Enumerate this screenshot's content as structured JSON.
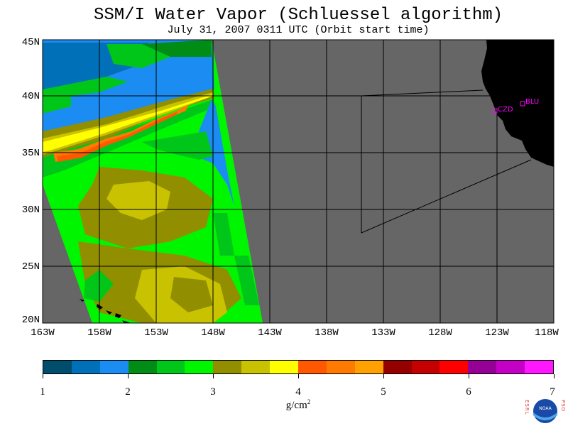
{
  "title": "SSM/I Water Vapor (Schluessel algorithm)",
  "subtitle": "July 31, 2007  0311 UTC  (Orbit start time)",
  "map": {
    "lat_labels": [
      "45N",
      "40N",
      "35N",
      "30N",
      "25N",
      "20N"
    ],
    "lon_labels": [
      "163W",
      "158W",
      "153W",
      "148W",
      "143W",
      "138W",
      "133W",
      "128W",
      "123W",
      "118W"
    ],
    "stations": [
      {
        "id": "CZD",
        "label": "CZD"
      },
      {
        "id": "BLU",
        "label": "BLU"
      }
    ],
    "colors": {
      "ocean_nodata": "#666666",
      "land": "#000000",
      "station": "#ff00ff"
    }
  },
  "colorbar": {
    "colors": [
      "#004e6c",
      "#0070b8",
      "#1b8cf2",
      "#008c15",
      "#00c619",
      "#00f500",
      "#918f00",
      "#c8c200",
      "#ffff00",
      "#ff5800",
      "#ff7a00",
      "#ffa100",
      "#950000",
      "#c40000",
      "#ff0000",
      "#950095",
      "#c400c4",
      "#ff18ff"
    ],
    "tick_labels": [
      "1",
      "2",
      "3",
      "4",
      "5",
      "6",
      "7"
    ],
    "units": "g/cm",
    "units_exp": "2"
  },
  "logo": {
    "left_text": "ESRL",
    "right_text": "PSD",
    "center_text": "NOAA"
  }
}
